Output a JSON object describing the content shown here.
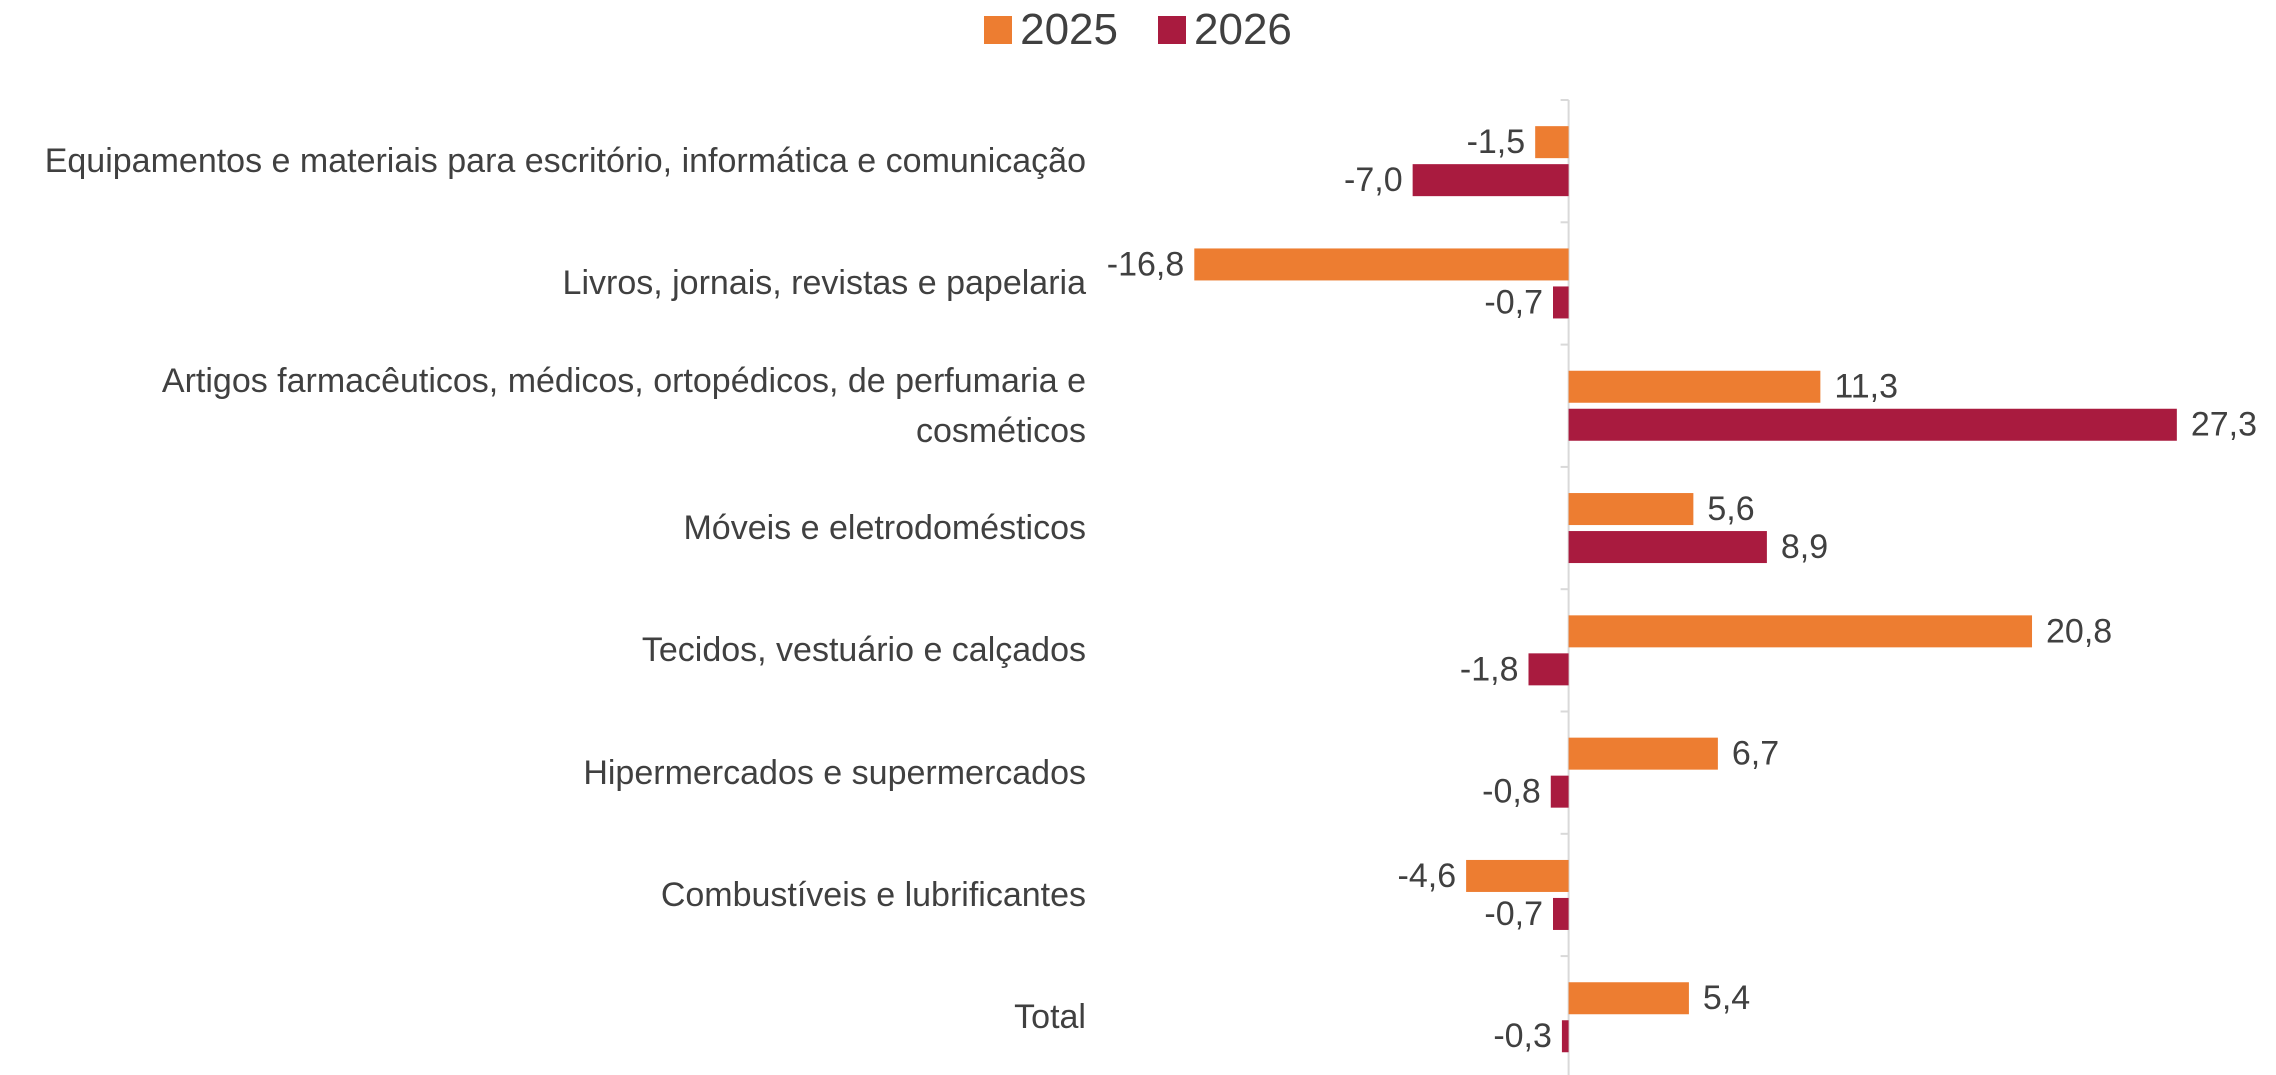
{
  "chart_data": {
    "type": "hbar",
    "categories": [
      "Equipamentos e materiais para escritório, informática e comunicação",
      "Livros, jornais, revistas e papelaria",
      "Artigos farmacêuticos, médicos, ortopédicos, de perfumaria e cosméticos",
      "Móveis e eletrodomésticos",
      "Tecidos, vestuário e calçados",
      "Hipermercados e supermercados",
      "Combustíveis e lubrificantes",
      "Total"
    ],
    "series": [
      {
        "name": "2025",
        "color": "#ED7D31",
        "values": [
          -1.5,
          -16.8,
          11.3,
          5.6,
          20.8,
          6.7,
          -4.6,
          5.4
        ],
        "value_labels": [
          "-1,5",
          "-16,8",
          "11,3",
          "5,6",
          "20,8",
          "6,7",
          "-4,6",
          "5,4"
        ]
      },
      {
        "name": "2026",
        "color": "#A91B3F",
        "values": [
          -7.0,
          -0.7,
          27.3,
          8.9,
          -1.8,
          -0.8,
          -0.7,
          -0.3
        ],
        "value_labels": [
          "-7,0",
          "-0,7",
          "27,3",
          "8,9",
          "-1,8",
          "-0,8",
          "-0,7",
          "-0,3"
        ]
      }
    ],
    "xlim": [
      -20,
      30
    ],
    "legend": "top"
  }
}
